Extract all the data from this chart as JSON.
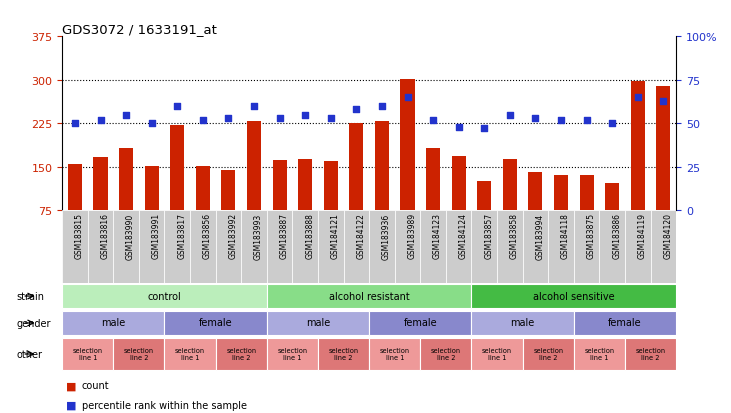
{
  "title": "GDS3072 / 1633191_at",
  "samples": [
    "GSM183815",
    "GSM183816",
    "GSM183990",
    "GSM183991",
    "GSM183817",
    "GSM183856",
    "GSM183992",
    "GSM183993",
    "GSM183887",
    "GSM183888",
    "GSM184121",
    "GSM184122",
    "GSM183936",
    "GSM183989",
    "GSM184123",
    "GSM184124",
    "GSM183857",
    "GSM183858",
    "GSM183994",
    "GSM184118",
    "GSM183875",
    "GSM183886",
    "GSM184119",
    "GSM184120"
  ],
  "counts": [
    155,
    167,
    183,
    152,
    222,
    152,
    145,
    228,
    162,
    163,
    160,
    226,
    228,
    302,
    183,
    168,
    125,
    163,
    140,
    135,
    135,
    122,
    298,
    290
  ],
  "percentiles": [
    50,
    52,
    55,
    50,
    60,
    52,
    53,
    60,
    53,
    55,
    53,
    58,
    60,
    65,
    52,
    48,
    47,
    55,
    53,
    52,
    52,
    50,
    65,
    63
  ],
  "left_ylim": [
    75,
    375
  ],
  "right_ylim": [
    0,
    100
  ],
  "left_yticks": [
    75,
    150,
    225,
    300,
    375
  ],
  "right_yticks": [
    0,
    25,
    50,
    75,
    100
  ],
  "right_yticklabels": [
    "0",
    "25",
    "50",
    "75",
    "100%"
  ],
  "hgrid_at": [
    150,
    225,
    300
  ],
  "bar_color": "#cc2200",
  "dot_color": "#2233cc",
  "tick_bg": "#cccccc",
  "strain_groups": [
    {
      "label": "control",
      "start": 0,
      "end": 8,
      "color": "#bbeebb"
    },
    {
      "label": "alcohol resistant",
      "start": 8,
      "end": 16,
      "color": "#88dd88"
    },
    {
      "label": "alcohol sensitive",
      "start": 16,
      "end": 24,
      "color": "#44bb44"
    }
  ],
  "gender_groups": [
    {
      "label": "male",
      "start": 0,
      "end": 4,
      "color": "#aaaadd"
    },
    {
      "label": "female",
      "start": 4,
      "end": 8,
      "color": "#8888cc"
    },
    {
      "label": "male",
      "start": 8,
      "end": 12,
      "color": "#aaaadd"
    },
    {
      "label": "female",
      "start": 12,
      "end": 16,
      "color": "#8888cc"
    },
    {
      "label": "male",
      "start": 16,
      "end": 20,
      "color": "#aaaadd"
    },
    {
      "label": "female",
      "start": 20,
      "end": 24,
      "color": "#8888cc"
    }
  ],
  "other_groups": [
    {
      "label": "selection\nline 1",
      "start": 0,
      "end": 2,
      "color": "#ee9999"
    },
    {
      "label": "selection\nline 2",
      "start": 2,
      "end": 4,
      "color": "#dd7777"
    },
    {
      "label": "selection\nline 1",
      "start": 4,
      "end": 6,
      "color": "#ee9999"
    },
    {
      "label": "selection\nline 2",
      "start": 6,
      "end": 8,
      "color": "#dd7777"
    },
    {
      "label": "selection\nline 1",
      "start": 8,
      "end": 10,
      "color": "#ee9999"
    },
    {
      "label": "selection\nline 2",
      "start": 10,
      "end": 12,
      "color": "#dd7777"
    },
    {
      "label": "selection\nline 1",
      "start": 12,
      "end": 14,
      "color": "#ee9999"
    },
    {
      "label": "selection\nline 2",
      "start": 14,
      "end": 16,
      "color": "#dd7777"
    },
    {
      "label": "selection\nline 1",
      "start": 16,
      "end": 18,
      "color": "#ee9999"
    },
    {
      "label": "selection\nline 2",
      "start": 18,
      "end": 20,
      "color": "#dd7777"
    },
    {
      "label": "selection\nline 1",
      "start": 20,
      "end": 22,
      "color": "#ee9999"
    },
    {
      "label": "selection\nline 2",
      "start": 22,
      "end": 24,
      "color": "#dd7777"
    }
  ],
  "legend_count": "count",
  "legend_pct": "percentile rank within the sample",
  "bg_color": "#ffffff"
}
